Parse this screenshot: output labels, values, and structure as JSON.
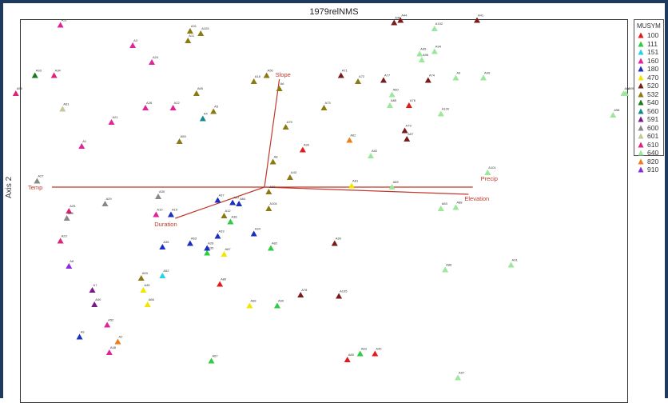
{
  "chart_data": {
    "type": "scatter",
    "title": "1979relNMS",
    "ylabel": "Axis 2",
    "legend_title": "MUSYM",
    "legend": [
      {
        "code": "100",
        "color": "#e31a1c"
      },
      {
        "code": "111",
        "color": "#2ecc40"
      },
      {
        "code": "151",
        "color": "#22d3ee"
      },
      {
        "code": "160",
        "color": "#e0239a"
      },
      {
        "code": "180",
        "color": "#1a2fbf"
      },
      {
        "code": "470",
        "color": "#f2e600"
      },
      {
        "code": "520",
        "color": "#7a1a1a"
      },
      {
        "code": "532",
        "color": "#8a7a10"
      },
      {
        "code": "540",
        "color": "#1a7a1a"
      },
      {
        "code": "560",
        "color": "#138a8a"
      },
      {
        "code": "591",
        "color": "#7a1a8a"
      },
      {
        "code": "600",
        "color": "#888888"
      },
      {
        "code": "601",
        "color": "#c7c79a"
      },
      {
        "code": "610",
        "color": "#e0237a"
      },
      {
        "code": "640",
        "color": "#9be89b"
      },
      {
        "code": "820",
        "color": "#ef7d17"
      },
      {
        "code": "910",
        "color": "#8a2be2"
      }
    ],
    "vectors": [
      {
        "name": "Temp",
        "x": -1.0,
        "y": 0.0
      },
      {
        "name": "Precip",
        "x": 0.98,
        "y": 0.0
      },
      {
        "name": "Elevation",
        "x": 0.96,
        "y": -0.06
      },
      {
        "name": "Slope",
        "x": 0.07,
        "y": 0.9
      },
      {
        "name": "Duration",
        "x": -0.42,
        "y": -0.26
      }
    ],
    "points": [
      {
        "id": "A51",
        "g": "160",
        "x": -0.96,
        "y": 1.35
      },
      {
        "id": "A31",
        "g": "532",
        "x": -0.35,
        "y": 1.3
      },
      {
        "id": "A103",
        "g": "532",
        "x": -0.3,
        "y": 1.28
      },
      {
        "id": "A11",
        "g": "532",
        "x": -0.36,
        "y": 1.22
      },
      {
        "id": "A3",
        "g": "160",
        "x": -0.62,
        "y": 1.18
      },
      {
        "id": "A24",
        "g": "160",
        "x": -0.53,
        "y": 1.04
      },
      {
        "id": "A46",
        "g": "520",
        "x": 0.61,
        "y": 1.37
      },
      {
        "id": "A44",
        "g": "520",
        "x": 0.64,
        "y": 1.39
      },
      {
        "id": "A41",
        "g": "520",
        "x": 1.0,
        "y": 1.39
      },
      {
        "id": "A102",
        "g": "640",
        "x": 0.8,
        "y": 1.32
      },
      {
        "id": "A95",
        "g": "640",
        "x": 0.73,
        "y": 1.11
      },
      {
        "id": "A94",
        "g": "640",
        "x": 0.8,
        "y": 1.13
      },
      {
        "id": "A96",
        "g": "640",
        "x": 0.74,
        "y": 1.06
      },
      {
        "id": "A93",
        "g": "540",
        "x": -1.08,
        "y": 0.93
      },
      {
        "id": "A34",
        "g": "610",
        "x": -0.99,
        "y": 0.93
      },
      {
        "id": "A55",
        "g": "610",
        "x": -1.17,
        "y": 0.78
      },
      {
        "id": "A50",
        "g": "532",
        "x": 0.01,
        "y": 0.93
      },
      {
        "id": "A71",
        "g": "520",
        "x": 0.36,
        "y": 0.93
      },
      {
        "id": "A18",
        "g": "532",
        "x": -0.05,
        "y": 0.88
      },
      {
        "id": "A6",
        "g": "532",
        "x": 0.07,
        "y": 0.82
      },
      {
        "id": "A72",
        "g": "532",
        "x": 0.44,
        "y": 0.88
      },
      {
        "id": "A77",
        "g": "520",
        "x": 0.56,
        "y": 0.89
      },
      {
        "id": "A74",
        "g": "520",
        "x": 0.77,
        "y": 0.89
      },
      {
        "id": "A9",
        "g": "640",
        "x": 0.9,
        "y": 0.91
      },
      {
        "id": "A99",
        "g": "640",
        "x": 1.03,
        "y": 0.91
      },
      {
        "id": "A98",
        "g": "640",
        "x": 1.69,
        "y": 0.78
      },
      {
        "id": "A105",
        "g": "640",
        "x": 1.7,
        "y": 0.78
      },
      {
        "id": "A65",
        "g": "532",
        "x": -0.32,
        "y": 0.78
      },
      {
        "id": "A60",
        "g": "640",
        "x": 0.6,
        "y": 0.77
      },
      {
        "id": "A61",
        "g": "601",
        "x": -0.95,
        "y": 0.65
      },
      {
        "id": "A26",
        "g": "160",
        "x": -0.56,
        "y": 0.66
      },
      {
        "id": "A22",
        "g": "160",
        "x": -0.43,
        "y": 0.66
      },
      {
        "id": "A5",
        "g": "532",
        "x": -0.24,
        "y": 0.63
      },
      {
        "id": "A73",
        "g": "532",
        "x": 0.28,
        "y": 0.66
      },
      {
        "id": "A85",
        "g": "640",
        "x": 0.59,
        "y": 0.68
      },
      {
        "id": "A76",
        "g": "100",
        "x": 0.68,
        "y": 0.68
      },
      {
        "id": "A100",
        "g": "640",
        "x": 0.83,
        "y": 0.61
      },
      {
        "id": "A58",
        "g": "640",
        "x": 1.64,
        "y": 0.6
      },
      {
        "id": "A4",
        "g": "560",
        "x": -0.29,
        "y": 0.57
      },
      {
        "id": "A21",
        "g": "160",
        "x": -0.72,
        "y": 0.54
      },
      {
        "id": "A75",
        "g": "532",
        "x": 0.1,
        "y": 0.5
      },
      {
        "id": "A1",
        "g": "160",
        "x": -0.86,
        "y": 0.34
      },
      {
        "id": "A59",
        "g": "532",
        "x": -0.4,
        "y": 0.38
      },
      {
        "id": "A62",
        "g": "820",
        "x": 0.4,
        "y": 0.39
      },
      {
        "id": "A79",
        "g": "520",
        "x": 0.66,
        "y": 0.47
      },
      {
        "id": "A57",
        "g": "520",
        "x": 0.67,
        "y": 0.4
      },
      {
        "id": "A90",
        "g": "100",
        "x": 0.18,
        "y": 0.31
      },
      {
        "id": "A92",
        "g": "640",
        "x": 0.5,
        "y": 0.26
      },
      {
        "id": "A8",
        "g": "532",
        "x": 0.04,
        "y": 0.21
      },
      {
        "id": "A43",
        "g": "532",
        "x": 0.12,
        "y": 0.08
      },
      {
        "id": "A27",
        "g": "600",
        "x": -1.07,
        "y": 0.05
      },
      {
        "id": "A101",
        "g": "640",
        "x": 1.05,
        "y": 0.12
      },
      {
        "id": "A81",
        "g": "470",
        "x": 0.41,
        "y": 0.01
      },
      {
        "id": "A89",
        "g": "640",
        "x": 0.6,
        "y": 0
      },
      {
        "id": "A30",
        "g": "600",
        "x": -0.5,
        "y": -0.08
      },
      {
        "id": "A29",
        "g": "600",
        "x": -0.75,
        "y": -0.14
      },
      {
        "id": "A32",
        "g": "532",
        "x": 0.02,
        "y": -0.04
      },
      {
        "id": "A104",
        "g": "532",
        "x": 0.02,
        "y": -0.18
      },
      {
        "id": "A37",
        "g": "180",
        "x": -0.22,
        "y": -0.11
      },
      {
        "id": "A47",
        "g": "180",
        "x": -0.15,
        "y": -0.13
      },
      {
        "id": "A64",
        "g": "180",
        "x": -0.12,
        "y": -0.14
      },
      {
        "id": "A25",
        "g": "610",
        "x": -0.92,
        "y": -0.2
      },
      {
        "id": "A28",
        "g": "600",
        "x": -0.93,
        "y": -0.26
      },
      {
        "id": "A10",
        "g": "160",
        "x": -0.51,
        "y": -0.23
      },
      {
        "id": "A19",
        "g": "180",
        "x": -0.44,
        "y": -0.23
      },
      {
        "id": "A12",
        "g": "532",
        "x": -0.19,
        "y": -0.24
      },
      {
        "id": "A38",
        "g": "111",
        "x": -0.16,
        "y": -0.29
      },
      {
        "id": "A83",
        "g": "640",
        "x": 0.83,
        "y": -0.18
      },
      {
        "id": "A88",
        "g": "640",
        "x": 0.9,
        "y": -0.17
      },
      {
        "id": "A23",
        "g": "610",
        "x": -0.96,
        "y": -0.45
      },
      {
        "id": "A33",
        "g": "180",
        "x": -0.22,
        "y": -0.41
      },
      {
        "id": "A36",
        "g": "180",
        "x": -0.48,
        "y": -0.5
      },
      {
        "id": "A63",
        "g": "180",
        "x": -0.35,
        "y": -0.47
      },
      {
        "id": "A34b",
        "g": "180",
        "x": -0.05,
        "y": -0.39
      },
      {
        "id": "A35",
        "g": "111",
        "x": -0.27,
        "y": -0.55
      },
      {
        "id": "A26b",
        "g": "180",
        "x": -0.27,
        "y": -0.51
      },
      {
        "id": "A87",
        "g": "470",
        "x": -0.19,
        "y": -0.56
      },
      {
        "id": "A82",
        "g": "111",
        "x": 0.03,
        "y": -0.51
      },
      {
        "id": "A39",
        "g": "520",
        "x": 0.33,
        "y": -0.47
      },
      {
        "id": "A8b",
        "g": "910",
        "x": -0.92,
        "y": -0.66
      },
      {
        "id": "A86",
        "g": "640",
        "x": 0.85,
        "y": -0.69
      },
      {
        "id": "A91",
        "g": "640",
        "x": 1.16,
        "y": -0.65
      },
      {
        "id": "A53",
        "g": "532",
        "x": -0.58,
        "y": -0.76
      },
      {
        "id": "A52",
        "g": "151",
        "x": -0.48,
        "y": -0.74
      },
      {
        "id": "A80",
        "g": "100",
        "x": -0.21,
        "y": -0.81
      },
      {
        "id": "A7",
        "g": "591",
        "x": -0.81,
        "y": -0.86
      },
      {
        "id": "A45",
        "g": "470",
        "x": -0.57,
        "y": -0.86
      },
      {
        "id": "A78",
        "g": "520",
        "x": 0.17,
        "y": -0.9
      },
      {
        "id": "A105b",
        "g": "520",
        "x": 0.35,
        "y": -0.91
      },
      {
        "id": "A40",
        "g": "591",
        "x": -0.8,
        "y": -0.98
      },
      {
        "id": "A66",
        "g": "470",
        "x": -0.55,
        "y": -0.98
      },
      {
        "id": "A68",
        "g": "470",
        "x": -0.07,
        "y": -0.99
      },
      {
        "id": "A90b",
        "g": "111",
        "x": 0.06,
        "y": -0.99
      },
      {
        "id": "A52b",
        "g": "160",
        "x": -0.74,
        "y": -1.15
      },
      {
        "id": "A9b",
        "g": "180",
        "x": -0.87,
        "y": -1.25
      },
      {
        "id": "A2",
        "g": "820",
        "x": -0.69,
        "y": -1.29
      },
      {
        "id": "A48",
        "g": "160",
        "x": -0.73,
        "y": -1.38
      },
      {
        "id": "A83b",
        "g": "111",
        "x": 0.45,
        "y": -1.39
      },
      {
        "id": "A40b",
        "g": "100",
        "x": 0.52,
        "y": -1.39
      },
      {
        "id": "A85b",
        "g": "100",
        "x": 0.39,
        "y": -1.44
      },
      {
        "id": "A67",
        "g": "111",
        "x": -0.25,
        "y": -1.45
      },
      {
        "id": "A97",
        "g": "640",
        "x": 0.91,
        "y": -1.59
      }
    ]
  }
}
